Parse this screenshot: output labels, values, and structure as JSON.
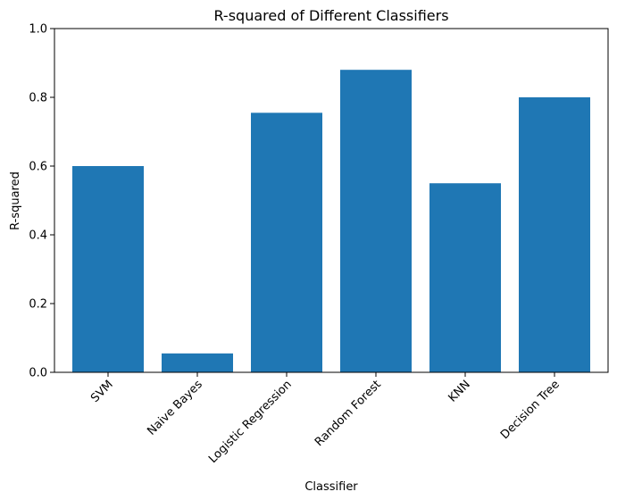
{
  "chart_data": {
    "type": "bar",
    "title": "R-squared of Different Classifiers",
    "xlabel": "Classifier",
    "ylabel": "R-squared",
    "categories": [
      "SVM",
      "Naive Bayes",
      "Logistic Regression",
      "Random Forest",
      "KNN",
      "Decision Tree"
    ],
    "values": [
      0.6,
      0.055,
      0.755,
      0.88,
      0.55,
      0.8
    ],
    "ylim": [
      0,
      1.0
    ],
    "yticks": [
      "0.0",
      "0.2",
      "0.4",
      "0.6",
      "0.8",
      "1.0"
    ],
    "grid": false,
    "bar_color": "#1f77b4"
  }
}
